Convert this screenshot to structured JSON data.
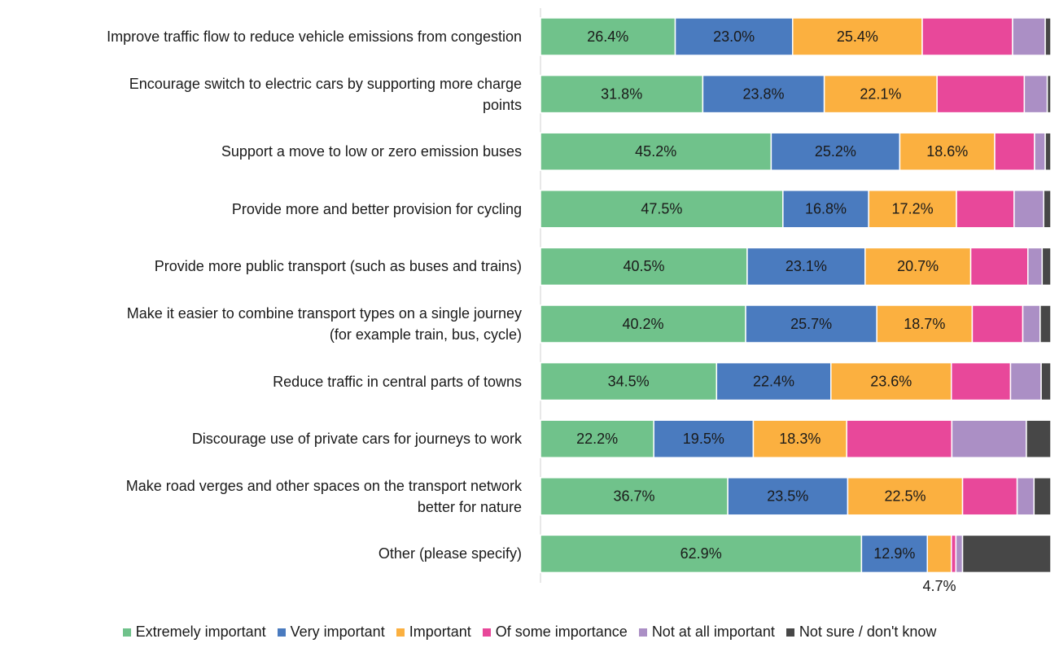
{
  "chart_data": {
    "type": "stacked_bar_horizontal",
    "categories": [
      "Improve traffic flow to reduce vehicle emissions from congestion",
      "Encourage switch to electric cars by supporting more charge\npoints",
      "Support a move to low or zero emission buses",
      "Provide more and better provision for cycling",
      "Provide more public transport (such as buses and trains)",
      "Make it easier to combine transport types on a single journey\n(for example train, bus, cycle)",
      "Reduce traffic in central parts of towns",
      "Discourage use of private cars for journeys to work",
      "Make road verges and other spaces on the transport network\nbetter for nature",
      "Other (please specify)"
    ],
    "xlim": [
      0,
      100
    ],
    "series": [
      {
        "name": "Extremely important",
        "color": "#70c28b",
        "values": [
          26.4,
          31.8,
          45.2,
          47.5,
          40.5,
          40.2,
          34.5,
          22.2,
          36.7,
          62.9
        ],
        "value_labels": [
          "26.4%",
          "31.8%",
          "45.2%",
          "47.5%",
          "40.5%",
          "40.2%",
          "34.5%",
          "22.2%",
          "36.7%",
          "62.9%"
        ]
      },
      {
        "name": "Very important",
        "color": "#4a7bbf",
        "values": [
          23.0,
          23.8,
          25.2,
          16.8,
          23.1,
          25.7,
          22.4,
          19.5,
          23.5,
          12.9
        ],
        "value_labels": [
          "23.0%",
          "23.8%",
          "25.2%",
          "16.8%",
          "23.1%",
          "25.7%",
          "22.4%",
          "19.5%",
          "23.5%",
          "12.9%"
        ]
      },
      {
        "name": "Important",
        "color": "#fbb040",
        "values": [
          25.4,
          22.1,
          18.6,
          17.2,
          20.7,
          18.7,
          23.6,
          18.3,
          22.5,
          4.7
        ],
        "value_labels": [
          "25.4%",
          "22.1%",
          "18.6%",
          "17.2%",
          "20.7%",
          "18.7%",
          "23.6%",
          "18.3%",
          "22.5%",
          "4.7%"
        ]
      },
      {
        "name": "Of some importance",
        "color": "#e8489a",
        "values": [
          17.7,
          17.1,
          7.8,
          11.3,
          11.2,
          9.9,
          11.6,
          20.6,
          10.7,
          0.9
        ]
      },
      {
        "name": "Not at all important",
        "color": "#ab8fc5",
        "values": [
          6.4,
          4.5,
          2.1,
          5.8,
          2.8,
          3.4,
          6.0,
          14.6,
          3.3,
          1.3
        ]
      },
      {
        "name": "Not sure / don't know",
        "color": "#474747",
        "values": [
          1.1,
          0.7,
          1.1,
          1.4,
          1.7,
          2.1,
          1.9,
          4.8,
          3.3,
          17.3
        ]
      }
    ]
  }
}
